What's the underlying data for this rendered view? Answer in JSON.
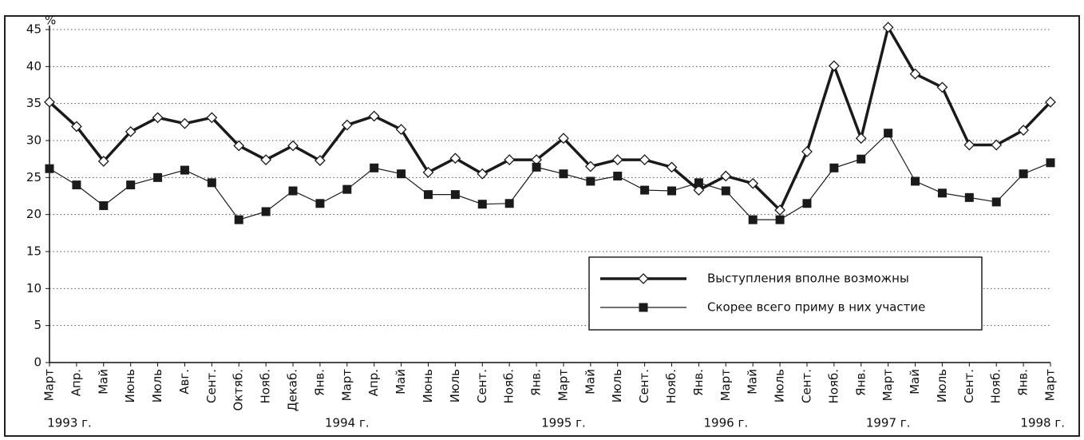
{
  "chart_data": {
    "type": "line",
    "y_unit": "%",
    "categories": [
      "Март",
      "Апр.",
      "Май",
      "Июнь",
      "Июль",
      "Авг.",
      "Сент.",
      "Октяб.",
      "Нояб.",
      "Декаб.",
      "Янв.",
      "Март",
      "Апр.",
      "Май",
      "Июнь",
      "Июль",
      "Сент.",
      "Нояб.",
      "Янв.",
      "Март",
      "Май",
      "Июль",
      "Сент.",
      "Нояб.",
      "Янв.",
      "Март",
      "Май",
      "Июль",
      "Сент.",
      "Нояб.",
      "Янв.",
      "Март",
      "Май",
      "Июль",
      "Сент.",
      "Нояб.",
      "Янв.",
      "Март"
    ],
    "years": [
      {
        "label": "1993 г.",
        "category": 0
      },
      {
        "label": "1994 г.",
        "category": 11
      },
      {
        "label": "1995 г.",
        "category": 19
      },
      {
        "label": "1996 г.",
        "category": 25
      },
      {
        "label": "1997 г.",
        "category": 31
      },
      {
        "label": "1998 г.",
        "category": 37
      }
    ],
    "series": [
      {
        "name": "Выступления вполне возможны",
        "color": "#1a1a1a",
        "marker": "diamond",
        "values": [
          35.2,
          31.9,
          27.2,
          31.2,
          33.1,
          32.3,
          33.1,
          29.3,
          27.4,
          29.3,
          27.3,
          32.1,
          33.3,
          31.5,
          25.7,
          27.6,
          25.5,
          27.4,
          27.4,
          30.3,
          26.5,
          27.4,
          27.4,
          26.4,
          23.3,
          25.2,
          24.2,
          20.6,
          28.5,
          40.1,
          30.3,
          45.3,
          39,
          37.2,
          29.4,
          29.4,
          31.4,
          35.2
        ]
      },
      {
        "name": "Скорее всего приму в них участие",
        "color": "#1a1a1a",
        "marker": "square",
        "values": [
          26.2,
          24,
          21.2,
          24,
          25,
          26,
          24.3,
          19.3,
          20.4,
          23.2,
          21.5,
          23.4,
          26.3,
          25.5,
          22.7,
          22.7,
          21.4,
          21.5,
          26.4,
          25.5,
          24.5,
          25.2,
          23.3,
          23.2,
          24.3,
          23.2,
          19.3,
          19.3,
          21.5,
          26.3,
          27.5,
          31,
          24.5,
          22.9,
          22.3,
          21.7,
          25.5,
          27
        ]
      }
    ],
    "ylim": [
      0,
      45
    ],
    "yticks": [
      0,
      5,
      10,
      15,
      20,
      25,
      30,
      35,
      40,
      45
    ],
    "grid": true
  }
}
